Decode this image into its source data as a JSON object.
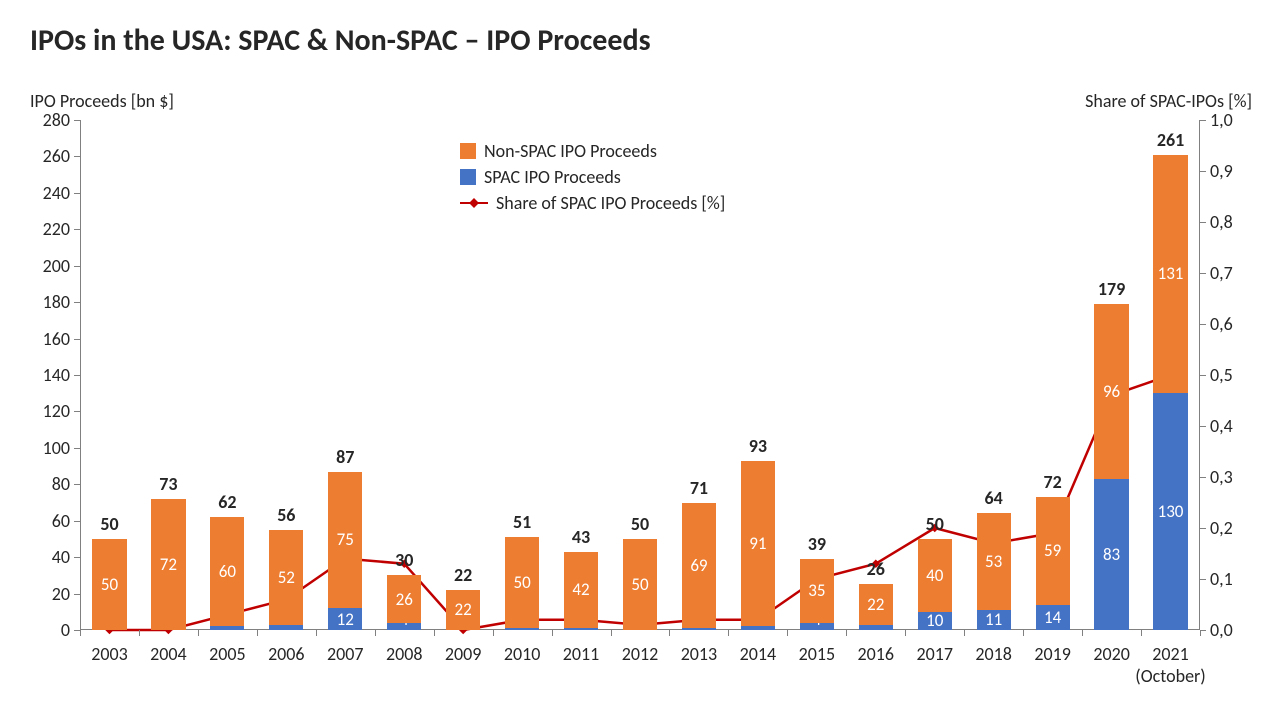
{
  "title": "IPOs in the USA: SPAC & Non-SPAC – IPO Proceeds",
  "y_left_label": "IPO Proceeds [bn $]",
  "y_right_label": "Share of SPAC-IPOs [%]",
  "colors": {
    "non_spac": "#ed7d31",
    "spac": "#4472c4",
    "line": "#c00000",
    "axis": "#808080",
    "text": "#262626",
    "bg": "#ffffff",
    "spac_text_out": "#404040",
    "non_spac_text_out": "#404040"
  },
  "legend": {
    "non_spac": "Non-SPAC IPO Proceeds",
    "spac": "SPAC IPO Proceeds",
    "line": "Share of SPAC IPO Proceeds [%]"
  },
  "y_left": {
    "min": 0,
    "max": 280,
    "step": 20
  },
  "y_right": {
    "min": 0,
    "max": 1.0,
    "step": 0.1,
    "decimal_sep": ","
  },
  "categories": [
    "2003",
    "2004",
    "2005",
    "2006",
    "2007",
    "2008",
    "2009",
    "2010",
    "2011",
    "2012",
    "2013",
    "2014",
    "2015",
    "2016",
    "2017",
    "2018",
    "2019",
    "2020",
    "2021\n(October)"
  ],
  "spac": [
    0,
    0,
    2,
    3,
    12,
    4,
    0,
    1,
    1,
    0,
    1,
    2,
    4,
    3,
    10,
    11,
    14,
    83,
    130
  ],
  "non_spac": [
    50,
    72,
    60,
    52,
    75,
    26,
    22,
    50,
    42,
    50,
    69,
    91,
    35,
    22,
    40,
    53,
    59,
    96,
    131
  ],
  "totals": [
    50,
    73,
    62,
    56,
    87,
    30,
    22,
    51,
    43,
    50,
    71,
    93,
    39,
    26,
    50,
    64,
    72,
    179,
    261
  ],
  "share": [
    0.0,
    0.0,
    0.03,
    0.06,
    0.14,
    0.13,
    0.0,
    0.02,
    0.02,
    0.01,
    0.02,
    0.02,
    0.1,
    0.13,
    0.2,
    0.17,
    0.19,
    0.46,
    0.5
  ],
  "bar_width_ratio": 0.58,
  "fontsize": {
    "title": 30,
    "axis_label": 18,
    "tick": 18,
    "total": 18,
    "data_label": 17
  }
}
